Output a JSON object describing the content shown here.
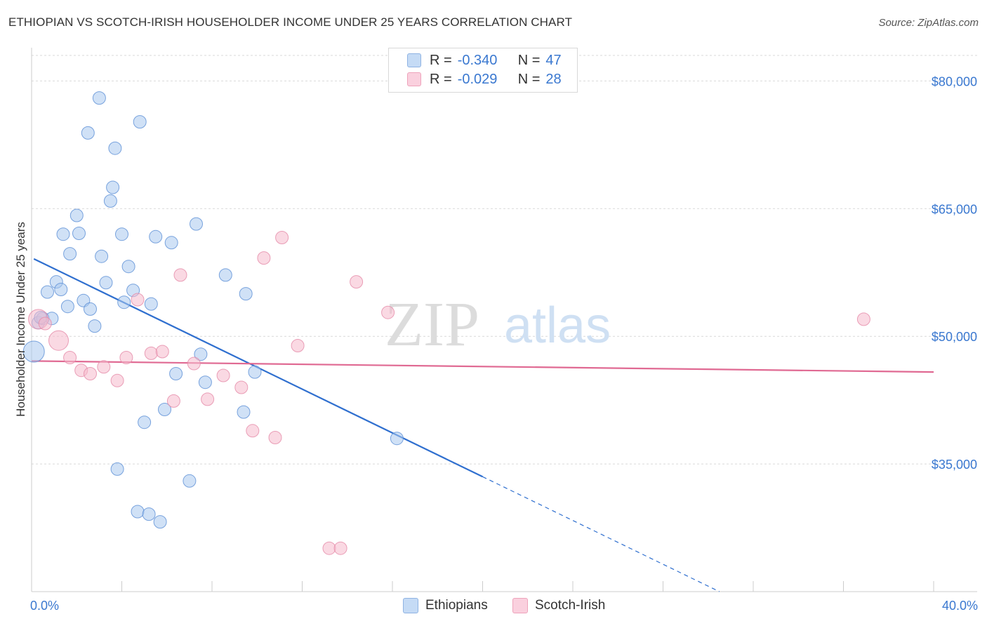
{
  "title": "ETHIOPIAN VS SCOTCH-IRISH HOUSEHOLDER INCOME UNDER 25 YEARS CORRELATION CHART",
  "source": "Source: ZipAtlas.com",
  "watermark": {
    "zip": "ZIP",
    "atlas": "atlas"
  },
  "legend": {
    "r_label": "R =",
    "n_label": "N =",
    "rows": [
      {
        "r": "-0.340",
        "n": "47",
        "color": "#a9c8ef"
      },
      {
        "r": "-0.029",
        "n": "28",
        "color": "#f5b9cc"
      }
    ]
  },
  "chart_data": {
    "type": "scatter",
    "title": "ETHIOPIAN VS SCOTCH-IRISH HOUSEHOLDER INCOME UNDER 25 YEARS CORRELATION CHART",
    "xlabel": "",
    "ylabel": "Householder Income Under 25 years",
    "xlim": [
      0,
      40
    ],
    "ylim": [
      20000,
      83000
    ],
    "x_tick_labels": [
      "0.0%",
      "40.0%"
    ],
    "y_ticks": [
      35000,
      50000,
      65000,
      80000
    ],
    "y_tick_labels": [
      "$35,000",
      "$50,000",
      "$65,000",
      "$80,000"
    ],
    "grid": true,
    "legend_position": "top-center",
    "series": [
      {
        "name": "Ethiopians",
        "color": "#5b8fd6",
        "fill": "#a9c8ef",
        "line_color": "#2f6fcf",
        "trend": {
          "x0": 0.1,
          "y0": 59100,
          "x1": 20,
          "y1": 33500,
          "dash_to_x": 30.5,
          "dash_to_y": 20000
        },
        "points": [
          [
            0.1,
            48200
          ],
          [
            0.3,
            51600
          ],
          [
            0.5,
            52100
          ],
          [
            0.7,
            55200
          ],
          [
            0.9,
            52100
          ],
          [
            1.1,
            56400
          ],
          [
            1.3,
            55500
          ],
          [
            1.4,
            62000
          ],
          [
            1.6,
            53500
          ],
          [
            1.7,
            59700
          ],
          [
            2.0,
            64200
          ],
          [
            2.1,
            62100
          ],
          [
            2.3,
            54200
          ],
          [
            2.5,
            73900
          ],
          [
            2.6,
            53200
          ],
          [
            2.8,
            51200
          ],
          [
            3.0,
            78000
          ],
          [
            3.1,
            59400
          ],
          [
            3.3,
            56300
          ],
          [
            3.5,
            65900
          ],
          [
            3.6,
            67500
          ],
          [
            3.7,
            72100
          ],
          [
            3.8,
            34400
          ],
          [
            4.0,
            62000
          ],
          [
            4.1,
            54000
          ],
          [
            4.3,
            58200
          ],
          [
            4.5,
            55400
          ],
          [
            4.7,
            29400
          ],
          [
            4.8,
            75200
          ],
          [
            5.0,
            39900
          ],
          [
            5.2,
            29100
          ],
          [
            5.3,
            53800
          ],
          [
            5.5,
            61700
          ],
          [
            5.7,
            28200
          ],
          [
            5.9,
            41400
          ],
          [
            6.2,
            61000
          ],
          [
            6.4,
            45600
          ],
          [
            7.0,
            33000
          ],
          [
            7.3,
            63200
          ],
          [
            7.5,
            47900
          ],
          [
            7.7,
            44600
          ],
          [
            8.6,
            57200
          ],
          [
            9.4,
            41100
          ],
          [
            9.5,
            55000
          ],
          [
            9.9,
            45800
          ],
          [
            16.2,
            38000
          ],
          [
            0.4,
            52200
          ]
        ]
      },
      {
        "name": "Scotch-Irish",
        "color": "#e58aa8",
        "fill": "#f5b9cc",
        "line_color": "#e06a93",
        "trend": {
          "x0": 0.0,
          "y0": 47100,
          "x1": 40,
          "y1": 45800
        },
        "points": [
          [
            0.3,
            52000
          ],
          [
            1.2,
            49500
          ],
          [
            1.7,
            47500
          ],
          [
            2.2,
            46000
          ],
          [
            2.6,
            45600
          ],
          [
            3.2,
            46400
          ],
          [
            3.8,
            44800
          ],
          [
            4.2,
            47500
          ],
          [
            4.7,
            54300
          ],
          [
            5.3,
            48000
          ],
          [
            5.8,
            48200
          ],
          [
            6.3,
            42400
          ],
          [
            6.6,
            57200
          ],
          [
            7.2,
            46800
          ],
          [
            7.8,
            42600
          ],
          [
            8.5,
            45400
          ],
          [
            9.3,
            44000
          ],
          [
            9.8,
            38900
          ],
          [
            10.3,
            59200
          ],
          [
            10.8,
            38100
          ],
          [
            11.1,
            61600
          ],
          [
            11.8,
            48900
          ],
          [
            13.2,
            25100
          ],
          [
            13.7,
            25100
          ],
          [
            14.4,
            56400
          ],
          [
            15.8,
            52800
          ],
          [
            36.9,
            52000
          ],
          [
            0.6,
            51500
          ]
        ]
      }
    ]
  }
}
